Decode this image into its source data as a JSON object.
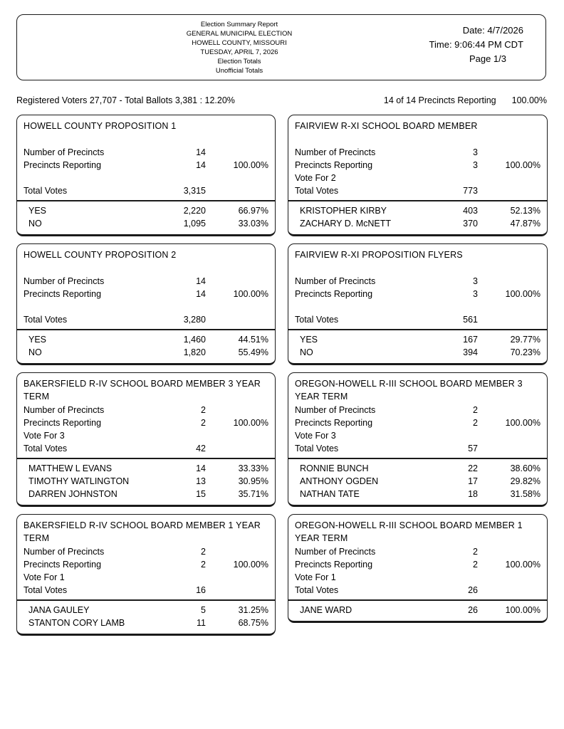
{
  "header": {
    "center_lines": [
      "Election Summary Report",
      "GENERAL MUNICIPAL ELECTION",
      "HOWELL COUNTY, MISSOURI",
      "TUESDAY, APRIL 7, 2026",
      "Election Totals",
      "Unofficial Totals"
    ],
    "date": "Date: 4/7/2026",
    "time": "Time: 9:06:44 PM CDT",
    "page": "Page 1/3"
  },
  "summary": {
    "registered": "Registered Voters 27,707 - Total Ballots 3,381 : 12.20%",
    "precincts_reporting": "14 of 14 Precincts Reporting",
    "precincts_pct": "100.00%"
  },
  "labels": {
    "number_of_precincts": "Number of Precincts",
    "precincts_reporting": "Precincts Reporting",
    "total_votes": "Total Votes"
  },
  "contests": [
    {
      "title": "HOWELL COUNTY PROPOSITION 1",
      "precincts": "14",
      "reporting": "14",
      "reporting_pct": "100.00%",
      "vote_for": "",
      "total_votes": "3,315",
      "candidates": [
        {
          "name": "YES",
          "votes": "2,220",
          "pct": "66.97%"
        },
        {
          "name": "NO",
          "votes": "1,095",
          "pct": "33.03%"
        }
      ]
    },
    {
      "title": "FAIRVIEW R-XI SCHOOL BOARD MEMBER",
      "precincts": "3",
      "reporting": "3",
      "reporting_pct": "100.00%",
      "vote_for": "Vote For 2",
      "total_votes": "773",
      "candidates": [
        {
          "name": "KRISTOPHER KIRBY",
          "votes": "403",
          "pct": "52.13%"
        },
        {
          "name": "ZACHARY D. McNETT",
          "votes": "370",
          "pct": "47.87%"
        }
      ]
    },
    {
      "title": "HOWELL COUNTY PROPOSITION 2",
      "precincts": "14",
      "reporting": "14",
      "reporting_pct": "100.00%",
      "vote_for": "",
      "total_votes": "3,280",
      "candidates": [
        {
          "name": "YES",
          "votes": "1,460",
          "pct": "44.51%"
        },
        {
          "name": "NO",
          "votes": "1,820",
          "pct": "55.49%"
        }
      ]
    },
    {
      "title": "FAIRVIEW R-XI PROPOSITION FLYERS",
      "precincts": "3",
      "reporting": "3",
      "reporting_pct": "100.00%",
      "vote_for": "",
      "total_votes": "561",
      "candidates": [
        {
          "name": "YES",
          "votes": "167",
          "pct": "29.77%"
        },
        {
          "name": "NO",
          "votes": "394",
          "pct": "70.23%"
        }
      ]
    },
    {
      "title": "BAKERSFIELD R-IV SCHOOL BOARD MEMBER 3 YEAR TERM",
      "precincts": "2",
      "reporting": "2",
      "reporting_pct": "100.00%",
      "vote_for": "Vote For 3",
      "total_votes": "42",
      "candidates": [
        {
          "name": "MATTHEW L EVANS",
          "votes": "14",
          "pct": "33.33%"
        },
        {
          "name": "TIMOTHY WATLINGTON",
          "votes": "13",
          "pct": "30.95%"
        },
        {
          "name": "DARREN JOHNSTON",
          "votes": "15",
          "pct": "35.71%"
        }
      ]
    },
    {
      "title": "OREGON-HOWELL R-III SCHOOL BOARD MEMBER 3 YEAR TERM",
      "precincts": "2",
      "reporting": "2",
      "reporting_pct": "100.00%",
      "vote_for": "Vote For 3",
      "total_votes": "57",
      "candidates": [
        {
          "name": "RONNIE BUNCH",
          "votes": "22",
          "pct": "38.60%"
        },
        {
          "name": "ANTHONY OGDEN",
          "votes": "17",
          "pct": "29.82%"
        },
        {
          "name": "NATHAN TATE",
          "votes": "18",
          "pct": "31.58%"
        }
      ]
    },
    {
      "title": "BAKERSFIELD R-IV SCHOOL BOARD MEMBER 1 YEAR TERM",
      "precincts": "2",
      "reporting": "2",
      "reporting_pct": "100.00%",
      "vote_for": "Vote For 1",
      "total_votes": "16",
      "candidates": [
        {
          "name": "JANA GAULEY",
          "votes": "5",
          "pct": "31.25%"
        },
        {
          "name": "STANTON CORY LAMB",
          "votes": "11",
          "pct": "68.75%"
        }
      ]
    },
    {
      "title": "OREGON-HOWELL R-III SCHOOL BOARD MEMBER 1 YEAR TERM",
      "precincts": "2",
      "reporting": "2",
      "reporting_pct": "100.00%",
      "vote_for": "Vote For 1",
      "total_votes": "26",
      "candidates": [
        {
          "name": "JANE WARD",
          "votes": "26",
          "pct": "100.00%"
        }
      ]
    }
  ]
}
